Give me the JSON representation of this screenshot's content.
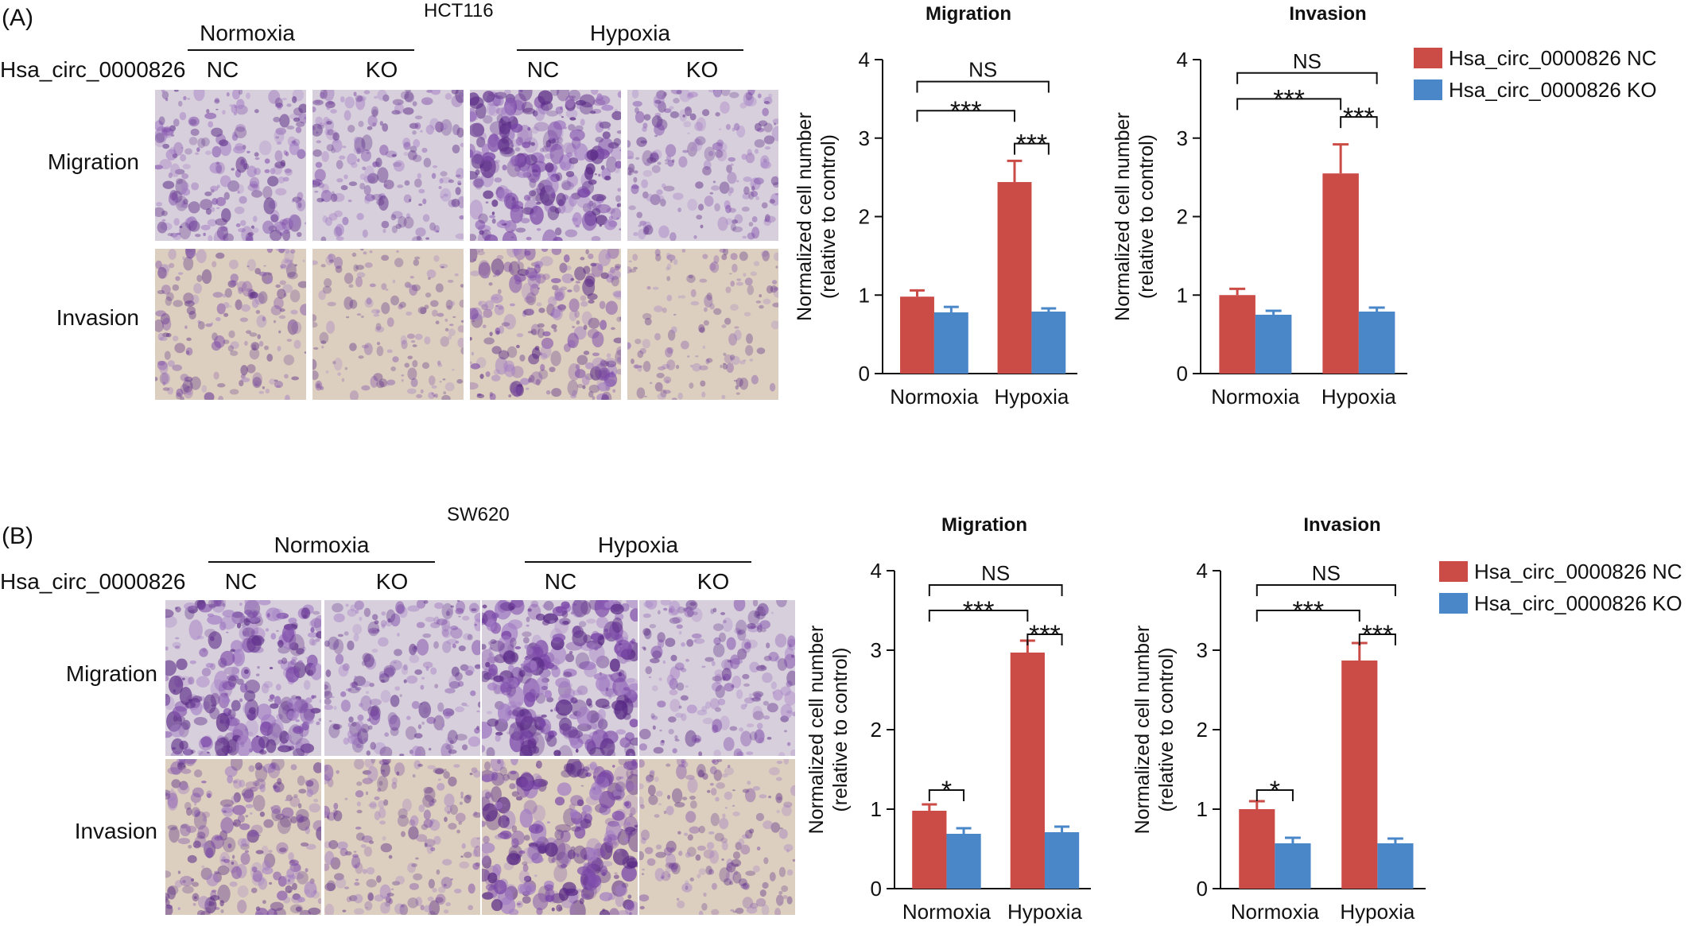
{
  "colors": {
    "nc": "#cb4b47",
    "ko": "#4a87c8",
    "axis": "#111111"
  },
  "panels": [
    {
      "id": "A",
      "label": "(A)",
      "cell_line": "HCT116",
      "row_header": "Hsa_circ_0000826",
      "groups": [
        "Normoxia",
        "Hypoxia"
      ],
      "columns": [
        "NC",
        "KO",
        "NC",
        "KO"
      ],
      "rows": [
        "Migration",
        "Invasion"
      ],
      "stain_density": [
        [
          0.55,
          0.45,
          0.85,
          0.42
        ],
        [
          0.4,
          0.25,
          0.6,
          0.22
        ]
      ]
    },
    {
      "id": "B",
      "label": "(B)",
      "cell_line": "SW620",
      "row_header": "Hsa_circ_0000826",
      "groups": [
        "Normoxia",
        "Hypoxia"
      ],
      "columns": [
        "NC",
        "KO",
        "NC",
        "KO"
      ],
      "rows": [
        "Migration",
        "Invasion"
      ],
      "stain_density": [
        [
          0.8,
          0.5,
          0.95,
          0.45
        ],
        [
          0.6,
          0.4,
          0.85,
          0.35
        ]
      ]
    }
  ],
  "chart_data": [
    {
      "type": "bar",
      "panel": "A",
      "title": "Migration",
      "categories": [
        "Normoxia",
        "Hypoxia"
      ],
      "ylabel": [
        "Normalized cell number",
        "(relative to control)"
      ],
      "ylim": [
        0,
        4
      ],
      "yticks": [
        0,
        1,
        2,
        3,
        4
      ],
      "series": [
        {
          "name": "Hsa_circ_0000826 NC",
          "values": [
            0.98,
            2.44
          ],
          "errors": [
            0.08,
            0.27
          ]
        },
        {
          "name": "Hsa_circ_0000826 KO",
          "values": [
            0.78,
            0.79
          ],
          "errors": [
            0.07,
            0.04
          ]
        }
      ],
      "annotations": [
        {
          "text": "NS",
          "from": [
            0,
            0
          ],
          "to": [
            1,
            1
          ],
          "y": 3.72
        },
        {
          "text": "***",
          "from": [
            0,
            0
          ],
          "to": [
            1,
            0
          ],
          "y": 3.35
        },
        {
          "text": "***",
          "from": [
            1,
            0
          ],
          "to": [
            1,
            1
          ],
          "y": 2.93
        }
      ],
      "legend": true
    },
    {
      "type": "bar",
      "panel": "A",
      "title": "Invasion",
      "categories": [
        "Normoxia",
        "Hypoxia"
      ],
      "ylabel": [
        "Normalized cell number",
        "(relative to control)"
      ],
      "ylim": [
        0,
        4
      ],
      "yticks": [
        0,
        1,
        2,
        3,
        4
      ],
      "series": [
        {
          "name": "Hsa_circ_0000826 NC",
          "values": [
            1.0,
            2.55
          ],
          "errors": [
            0.08,
            0.37
          ]
        },
        {
          "name": "Hsa_circ_0000826 KO",
          "values": [
            0.75,
            0.79
          ],
          "errors": [
            0.05,
            0.05
          ]
        }
      ],
      "annotations": [
        {
          "text": "NS",
          "from": [
            0,
            0
          ],
          "to": [
            1,
            1
          ],
          "y": 3.83
        },
        {
          "text": "***",
          "from": [
            0,
            0
          ],
          "to": [
            1,
            0
          ],
          "y": 3.5
        },
        {
          "text": "***",
          "from": [
            1,
            0
          ],
          "to": [
            1,
            1
          ],
          "y": 3.27
        }
      ],
      "legend": true
    },
    {
      "type": "bar",
      "panel": "B",
      "title": "Migration",
      "categories": [
        "Normoxia",
        "Hypoxia"
      ],
      "ylabel": [
        "Normalized cell number",
        "(relative to control)"
      ],
      "ylim": [
        0,
        4
      ],
      "yticks": [
        0,
        1,
        2,
        3,
        4
      ],
      "series": [
        {
          "name": "Hsa_circ_0000826 NC",
          "values": [
            0.98,
            2.97
          ],
          "errors": [
            0.08,
            0.15
          ]
        },
        {
          "name": "Hsa_circ_0000826 KO",
          "values": [
            0.69,
            0.71
          ],
          "errors": [
            0.07,
            0.07
          ]
        }
      ],
      "annotations": [
        {
          "text": "NS",
          "from": [
            0,
            0
          ],
          "to": [
            1,
            1
          ],
          "y": 3.82
        },
        {
          "text": "***",
          "from": [
            0,
            0
          ],
          "to": [
            1,
            0
          ],
          "y": 3.5
        },
        {
          "text": "***",
          "from": [
            1,
            0
          ],
          "to": [
            1,
            1
          ],
          "y": 3.2
        },
        {
          "text": "*",
          "from": [
            0,
            0
          ],
          "to": [
            0,
            1
          ],
          "y": 1.24
        }
      ],
      "legend": true
    },
    {
      "type": "bar",
      "panel": "B",
      "title": "Invasion",
      "categories": [
        "Normoxia",
        "Hypoxia"
      ],
      "ylabel": [
        "Normalized cell number",
        "(relative to control)"
      ],
      "ylim": [
        0,
        4
      ],
      "yticks": [
        0,
        1,
        2,
        3,
        4
      ],
      "series": [
        {
          "name": "Hsa_circ_0000826 NC",
          "values": [
            1.0,
            2.87
          ],
          "errors": [
            0.1,
            0.22
          ]
        },
        {
          "name": "Hsa_circ_0000826 KO",
          "values": [
            0.57,
            0.57
          ],
          "errors": [
            0.07,
            0.06
          ]
        }
      ],
      "annotations": [
        {
          "text": "NS",
          "from": [
            0,
            0
          ],
          "to": [
            1,
            1
          ],
          "y": 3.82
        },
        {
          "text": "***",
          "from": [
            0,
            0
          ],
          "to": [
            1,
            0
          ],
          "y": 3.5
        },
        {
          "text": "***",
          "from": [
            1,
            0
          ],
          "to": [
            1,
            1
          ],
          "y": 3.2
        },
        {
          "text": "*",
          "from": [
            0,
            0
          ],
          "to": [
            0,
            1
          ],
          "y": 1.24
        }
      ],
      "legend": true
    }
  ]
}
